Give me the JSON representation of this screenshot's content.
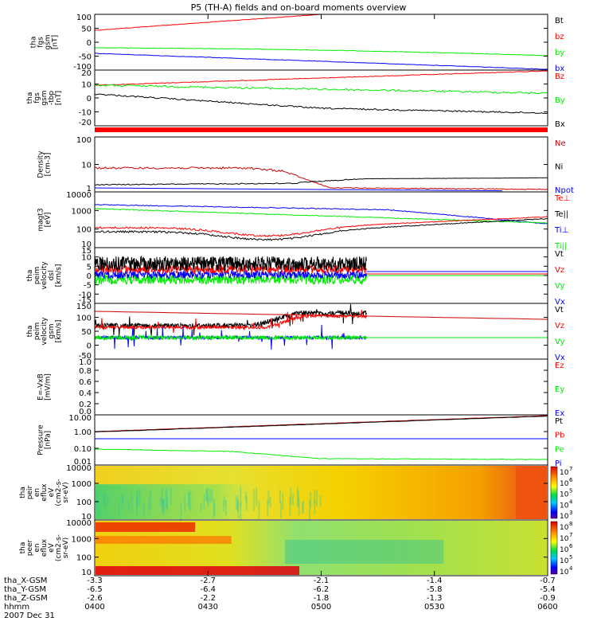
{
  "title": "P5 (TH-A) fields and on-board moments overview",
  "colors": {
    "black": "#000000",
    "red": "#ff0000",
    "darkred": "#cc0000",
    "green": "#00ee00",
    "blue": "#0000ff"
  },
  "chart_data": {
    "type": "line",
    "x_ticks": [
      "0400",
      "0430",
      "0500",
      "0530",
      "0600"
    ],
    "x_label": "hhmm",
    "date": "2007 Dec 31",
    "ephemeris": [
      {
        "label": "tha_X-GSM",
        "values": [
          "-3.3",
          "-2.7",
          "-2.1",
          "-1.4",
          "-0.7"
        ]
      },
      {
        "label": "tha_Y-GSM",
        "values": [
          "-6.5",
          "-6.4",
          "-6.2",
          "-5.8",
          "-5.4"
        ]
      },
      {
        "label": "tha_Z-GSM",
        "values": [
          "-2.6",
          "-2.2",
          "-1.8",
          "-1.3",
          "-0.9"
        ]
      }
    ],
    "panels": [
      {
        "id": "fgs-gsm",
        "ylabel": [
          "tha",
          "fgs",
          "gsm",
          "[nT]"
        ],
        "yticks": [
          "100",
          "50",
          "0",
          "-50",
          "-100"
        ],
        "legend": [
          {
            "name": "Bt",
            "color": "#000000"
          },
          {
            "name": "bz",
            "color": "#ff0000"
          },
          {
            "name": "by",
            "color": "#00ee00"
          },
          {
            "name": "bx",
            "color": "#0000ff"
          }
        ]
      },
      {
        "id": "fgs-gsm-detail",
        "ylabel": [
          "tha",
          "fgs",
          "gsm",
          "-tbp",
          "[nT]"
        ],
        "yticks": [
          "20",
          "10",
          "0",
          "-10",
          "-20"
        ],
        "legend": [
          {
            "name": "Bz",
            "color": "#ff0000"
          },
          {
            "name": "By",
            "color": "#00ee00"
          },
          {
            "name": "Bx",
            "color": "#000000"
          }
        ]
      },
      {
        "id": "density",
        "ylabel": [
          "Density",
          "[cm-3]"
        ],
        "yticks": [
          "100",
          "10",
          "1"
        ],
        "legend": [
          {
            "name": "Ne",
            "color": "#cc0000"
          },
          {
            "name": "Ni",
            "color": "#000000"
          },
          {
            "name": "Npot",
            "color": "#0000ff"
          }
        ]
      },
      {
        "id": "temperature",
        "ylabel": [
          "magt3",
          "[eV]"
        ],
        "yticks": [
          "10000",
          "1000",
          "100",
          "10"
        ],
        "legend": [
          {
            "name": "Te⊥",
            "color": "#ff0000"
          },
          {
            "name": "Te||",
            "color": "#000000"
          },
          {
            "name": "Ti⊥",
            "color": "#0000ff"
          },
          {
            "name": "Ti||",
            "color": "#00ee00"
          }
        ]
      },
      {
        "id": "peim-velocity-dsl",
        "ylabel": [
          "tha",
          "peim",
          "velocity",
          "dsl",
          "[km/s]"
        ],
        "yticks": [
          "15",
          "10",
          "5",
          "0",
          "-5",
          "-10",
          "-15"
        ],
        "legend": [
          {
            "name": "Vt",
            "color": "#000000"
          },
          {
            "name": "Vz",
            "color": "#ff0000"
          },
          {
            "name": "Vy",
            "color": "#00ee00"
          },
          {
            "name": "Vx",
            "color": "#0000ff"
          }
        ]
      },
      {
        "id": "peim-velocity-gsm",
        "ylabel": [
          "tha",
          "peim",
          "velocity",
          "gsm",
          "[km/s]"
        ],
        "yticks": [
          "150",
          "100",
          "50",
          "0",
          "-50"
        ],
        "legend": [
          {
            "name": "Vt",
            "color": "#000000"
          },
          {
            "name": "Vz",
            "color": "#ff0000"
          },
          {
            "name": "Vy",
            "color": "#00ee00"
          },
          {
            "name": "Vx",
            "color": "#0000ff"
          }
        ]
      },
      {
        "id": "e-field",
        "ylabel": [
          "E=-VxB",
          "[mV/m]"
        ],
        "yticks": [
          "1.0",
          "0.8",
          "0.6",
          "0.4",
          "0.2",
          "0.0"
        ],
        "legend": [
          {
            "name": "Ez",
            "color": "#ff0000"
          },
          {
            "name": "Ey",
            "color": "#00ee00"
          },
          {
            "name": "Ex",
            "color": "#0000ff"
          }
        ]
      },
      {
        "id": "pressure",
        "ylabel": [
          "Pressure",
          "[nPa]"
        ],
        "yticks": [
          "10.00",
          "1.00",
          "0.10",
          "0.01"
        ],
        "legend": [
          {
            "name": "Pt",
            "color": "#000000"
          },
          {
            "name": "Pb",
            "color": "#ff0000"
          },
          {
            "name": "Pe",
            "color": "#00ee00"
          },
          {
            "name": "Pi",
            "color": "#0000ff"
          }
        ]
      },
      {
        "id": "ion-spectrogram",
        "ylabel": [
          "tha",
          "peir",
          "en",
          "eflux",
          "eV",
          "(cm2-s-",
          "sr-eV)"
        ],
        "yticks": [
          "10000",
          "1000",
          "100",
          "10"
        ],
        "colorbar": [
          "10",
          "10",
          "10",
          "10",
          "10"
        ],
        "colorbar_exp": [
          "7",
          "6",
          "5",
          "4",
          "3"
        ]
      },
      {
        "id": "electron-spectrogram",
        "ylabel": [
          "tha",
          "peer",
          "en",
          "eflux",
          "eV",
          "(cm2-s-",
          "sr-eV)"
        ],
        "yticks": [
          "10000",
          "1000",
          "100",
          "10"
        ],
        "colorbar": [
          "10",
          "10",
          "10",
          "10",
          "10"
        ],
        "colorbar_exp": [
          "8",
          "7",
          "6",
          "5",
          "4"
        ]
      }
    ]
  }
}
